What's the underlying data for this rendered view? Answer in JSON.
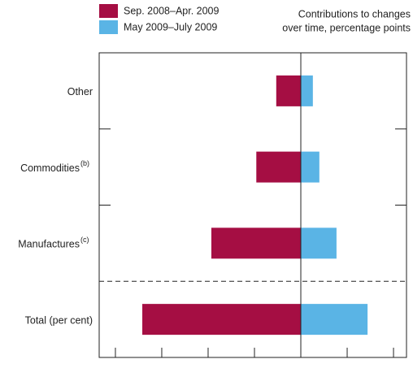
{
  "chart_data": {
    "type": "bar",
    "orientation": "horizontal",
    "xlabel": [
      "Contributions to changes",
      "over time, percentage points"
    ],
    "categories": [
      "Other",
      "Commodities",
      "Manufactures",
      "Total (per cent)"
    ],
    "category_superscripts": [
      null,
      "(b)",
      "(c)",
      null
    ],
    "series": [
      {
        "name": "Sep. 2008–Apr. 2009",
        "color": "#a50e43",
        "values": [
          -0.53,
          -0.96,
          -1.93,
          -3.42
        ]
      },
      {
        "name": "May 2009–July 2009",
        "color": "#5ab4e5",
        "values": [
          0.26,
          0.4,
          0.77,
          1.44
        ]
      }
    ],
    "xlim": [
      -4.35,
      2.28
    ],
    "xticks": [
      -4,
      -3,
      -2,
      -1,
      0,
      1,
      2
    ]
  }
}
